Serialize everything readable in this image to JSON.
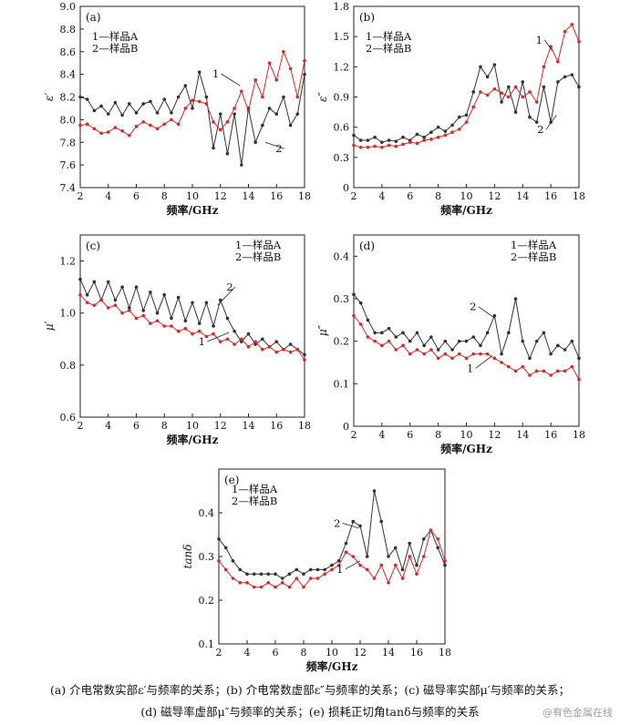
{
  "chart_data": [
    {
      "id": "a",
      "type": "line",
      "panel_label": "(a)",
      "xlabel": "频率/GHz",
      "ylabel": "ε′",
      "xlim": [
        2,
        18
      ],
      "ylim": [
        7.4,
        9.0
      ],
      "xticks": [
        2,
        4,
        6,
        8,
        10,
        12,
        14,
        16,
        18
      ],
      "yticks": [
        7.4,
        7.6,
        7.8,
        8.0,
        8.2,
        8.4,
        8.6,
        8.8,
        9.0
      ],
      "ytick_labels": [
        "7.4",
        "7.6",
        "7.8",
        "8.0",
        "8.2",
        "8.4",
        "8.6",
        "8.8",
        "9.0"
      ],
      "legend": [
        "1—样品A",
        "2—样品B"
      ],
      "series": [
        {
          "label": "1",
          "color": "#d42a2a",
          "x": [
            2,
            2.5,
            3,
            3.5,
            4,
            4.5,
            5,
            5.5,
            6,
            6.5,
            7,
            7.5,
            8,
            8.5,
            9,
            9.5,
            10,
            10.5,
            11,
            11.5,
            12,
            12.5,
            13,
            13.5,
            14,
            14.5,
            15,
            15.5,
            16,
            16.5,
            17,
            17.5,
            18
          ],
          "y": [
            7.95,
            7.96,
            7.92,
            7.88,
            7.89,
            7.93,
            7.9,
            7.86,
            7.94,
            7.98,
            7.95,
            7.92,
            7.96,
            8.0,
            7.96,
            8.1,
            8.17,
            8.16,
            8.14,
            7.98,
            7.91,
            7.98,
            8.1,
            8.25,
            8.08,
            8.35,
            8.2,
            8.5,
            8.35,
            8.6,
            8.45,
            8.2,
            8.52
          ]
        },
        {
          "label": "2",
          "color": "#333333",
          "x": [
            2,
            2.5,
            3,
            3.5,
            4,
            4.5,
            5,
            5.5,
            6,
            6.5,
            7,
            7.5,
            8,
            8.5,
            9,
            9.5,
            10,
            10.5,
            11,
            11.5,
            12,
            12.5,
            13,
            13.5,
            14,
            14.5,
            15,
            15.5,
            16,
            16.5,
            17,
            17.5,
            18
          ],
          "y": [
            8.2,
            8.18,
            8.08,
            8.12,
            8.05,
            8.15,
            8.04,
            8.14,
            8.06,
            8.14,
            8.16,
            8.06,
            8.18,
            8.06,
            8.2,
            8.3,
            8.1,
            8.42,
            8.2,
            7.75,
            8.05,
            7.7,
            8.05,
            7.6,
            8.1,
            7.8,
            7.95,
            8.1,
            8.05,
            8.2,
            7.95,
            8.05,
            8.4
          ]
        }
      ],
      "annotations": [
        "1",
        "2"
      ]
    },
    {
      "id": "b",
      "type": "line",
      "panel_label": "(b)",
      "xlabel": "频率/GHz",
      "ylabel": "ε″",
      "xlim": [
        2,
        18
      ],
      "ylim": [
        0,
        1.8
      ],
      "xticks": [
        2,
        4,
        6,
        8,
        10,
        12,
        14,
        16,
        18
      ],
      "yticks": [
        0,
        0.3,
        0.6,
        0.9,
        1.2,
        1.5,
        1.8
      ],
      "ytick_labels": [
        "0",
        "0.3",
        "0.6",
        "0.9",
        "1.2",
        "1.5",
        "1.8"
      ],
      "legend": [
        "1—样品A",
        "2—样品B"
      ],
      "series": [
        {
          "label": "1",
          "color": "#d42a2a",
          "x": [
            2,
            2.5,
            3,
            3.5,
            4,
            4.5,
            5,
            5.5,
            6,
            6.5,
            7,
            7.5,
            8,
            8.5,
            9,
            9.5,
            10,
            10.5,
            11,
            11.5,
            12,
            12.5,
            13,
            13.5,
            14,
            14.5,
            15,
            15.5,
            16,
            16.5,
            17,
            17.5,
            18
          ],
          "y": [
            0.42,
            0.4,
            0.4,
            0.41,
            0.4,
            0.42,
            0.41,
            0.43,
            0.45,
            0.44,
            0.47,
            0.48,
            0.5,
            0.52,
            0.55,
            0.58,
            0.65,
            0.8,
            0.95,
            0.92,
            0.98,
            0.94,
            0.9,
            1.0,
            0.9,
            0.95,
            0.85,
            1.2,
            1.4,
            1.25,
            1.55,
            1.62,
            1.45
          ]
        },
        {
          "label": "2",
          "color": "#333333",
          "x": [
            2,
            2.5,
            3,
            3.5,
            4,
            4.5,
            5,
            5.5,
            6,
            6.5,
            7,
            7.5,
            8,
            8.5,
            9,
            9.5,
            10,
            10.5,
            11,
            11.5,
            12,
            12.5,
            13,
            13.5,
            14,
            14.5,
            15,
            15.5,
            16,
            16.5,
            17,
            17.5,
            18
          ],
          "y": [
            0.52,
            0.47,
            0.47,
            0.5,
            0.45,
            0.47,
            0.46,
            0.5,
            0.47,
            0.53,
            0.5,
            0.55,
            0.6,
            0.56,
            0.62,
            0.7,
            0.72,
            0.95,
            1.2,
            1.1,
            1.22,
            0.85,
            1.0,
            0.75,
            1.05,
            0.7,
            0.65,
            1.0,
            0.65,
            1.05,
            1.1,
            1.12,
            1.0
          ]
        }
      ],
      "annotations": [
        "1",
        "2"
      ]
    },
    {
      "id": "c",
      "type": "line",
      "panel_label": "(c)",
      "xlabel": "频率/GHz",
      "ylabel": "μ′",
      "xlim": [
        2,
        18
      ],
      "ylim": [
        0.6,
        1.3
      ],
      "xticks": [
        2,
        4,
        6,
        8,
        10,
        12,
        14,
        16,
        18
      ],
      "yticks": [
        0.6,
        0.8,
        1.0,
        1.2
      ],
      "ytick_labels": [
        "0.6",
        "0.8",
        "1.0",
        "1.2"
      ],
      "legend": [
        "1—样品A",
        "2—样品B"
      ],
      "series": [
        {
          "label": "1",
          "color": "#d42a2a",
          "x": [
            2,
            2.5,
            3,
            3.5,
            4,
            4.5,
            5,
            5.5,
            6,
            6.5,
            7,
            7.5,
            8,
            8.5,
            9,
            9.5,
            10,
            10.5,
            11,
            11.5,
            12,
            12.5,
            13,
            13.5,
            14,
            14.5,
            15,
            15.5,
            16,
            16.5,
            17,
            17.5,
            18
          ],
          "y": [
            1.07,
            1.04,
            1.03,
            1.05,
            1.02,
            1.03,
            1.0,
            1.01,
            0.98,
            0.99,
            0.96,
            0.97,
            0.95,
            0.95,
            0.93,
            0.94,
            0.92,
            0.93,
            0.91,
            0.92,
            0.89,
            0.9,
            0.88,
            0.9,
            0.87,
            0.89,
            0.86,
            0.87,
            0.85,
            0.86,
            0.85,
            0.86,
            0.82
          ]
        },
        {
          "label": "2",
          "color": "#333333",
          "x": [
            2,
            2.5,
            3,
            3.5,
            4,
            4.5,
            5,
            5.5,
            6,
            6.5,
            7,
            7.5,
            8,
            8.5,
            9,
            9.5,
            10,
            10.5,
            11,
            11.5,
            12,
            12.5,
            13,
            13.5,
            14,
            14.5,
            15,
            15.5,
            16,
            16.5,
            17,
            17.5,
            18
          ],
          "y": [
            1.13,
            1.07,
            1.12,
            1.05,
            1.12,
            1.05,
            1.1,
            1.02,
            1.1,
            1.01,
            1.08,
            1.0,
            1.07,
            0.98,
            1.06,
            0.97,
            1.04,
            0.96,
            1.04,
            0.95,
            1.05,
            0.98,
            0.93,
            0.89,
            0.92,
            0.88,
            0.9,
            0.87,
            0.89,
            0.86,
            0.88,
            0.86,
            0.84
          ]
        }
      ],
      "annotations": [
        "1",
        "2"
      ]
    },
    {
      "id": "d",
      "type": "line",
      "panel_label": "(d)",
      "xlabel": "频率/GHz",
      "ylabel": "μ″",
      "xlim": [
        2,
        18
      ],
      "ylim": [
        0,
        0.45
      ],
      "xticks": [
        2,
        4,
        6,
        8,
        10,
        12,
        14,
        16,
        18
      ],
      "yticks": [
        0,
        0.1,
        0.2,
        0.3,
        0.4
      ],
      "ytick_labels": [
        "0",
        "0.1",
        "0.2",
        "0.3",
        "0.4"
      ],
      "legend": [
        "1—样品A",
        "2—样品B"
      ],
      "series": [
        {
          "label": "1",
          "color": "#d42a2a",
          "x": [
            2,
            2.5,
            3,
            3.5,
            4,
            4.5,
            5,
            5.5,
            6,
            6.5,
            7,
            7.5,
            8,
            8.5,
            9,
            9.5,
            10,
            10.5,
            11,
            11.5,
            12,
            12.5,
            13,
            13.5,
            14,
            14.5,
            15,
            15.5,
            16,
            16.5,
            17,
            17.5,
            18
          ],
          "y": [
            0.26,
            0.24,
            0.21,
            0.2,
            0.19,
            0.2,
            0.18,
            0.19,
            0.17,
            0.18,
            0.17,
            0.18,
            0.16,
            0.17,
            0.16,
            0.17,
            0.16,
            0.17,
            0.17,
            0.17,
            0.16,
            0.15,
            0.14,
            0.13,
            0.14,
            0.12,
            0.13,
            0.13,
            0.12,
            0.13,
            0.13,
            0.14,
            0.11
          ]
        },
        {
          "label": "2",
          "color": "#333333",
          "x": [
            2,
            2.5,
            3,
            3.5,
            4,
            4.5,
            5,
            5.5,
            6,
            6.5,
            7,
            7.5,
            8,
            8.5,
            9,
            9.5,
            10,
            10.5,
            11,
            11.5,
            12,
            12.5,
            13,
            13.5,
            14,
            14.5,
            15,
            15.5,
            16,
            16.5,
            17,
            17.5,
            18
          ],
          "y": [
            0.31,
            0.29,
            0.25,
            0.22,
            0.22,
            0.23,
            0.21,
            0.22,
            0.2,
            0.22,
            0.19,
            0.21,
            0.18,
            0.2,
            0.18,
            0.2,
            0.2,
            0.21,
            0.19,
            0.22,
            0.26,
            0.17,
            0.22,
            0.3,
            0.2,
            0.16,
            0.2,
            0.22,
            0.17,
            0.19,
            0.18,
            0.2,
            0.16
          ]
        }
      ],
      "annotations": [
        "1",
        "2"
      ]
    },
    {
      "id": "e",
      "type": "line",
      "panel_label": "(e)",
      "xlabel": "频率/GHz",
      "ylabel": "tanδ",
      "xlim": [
        2,
        18
      ],
      "ylim": [
        0.1,
        0.5
      ],
      "xticks": [
        2,
        4,
        6,
        8,
        10,
        12,
        14,
        16,
        18
      ],
      "yticks": [
        0.1,
        0.2,
        0.3,
        0.4
      ],
      "ytick_labels": [
        "0.1",
        "0.2",
        "0.3",
        "0.4"
      ],
      "legend": [
        "1—样品A",
        "2—样品B"
      ],
      "series": [
        {
          "label": "1",
          "color": "#d42a2a",
          "x": [
            2,
            2.5,
            3,
            3.5,
            4,
            4.5,
            5,
            5.5,
            6,
            6.5,
            7,
            7.5,
            8,
            8.5,
            9,
            9.5,
            10,
            10.5,
            11,
            11.5,
            12,
            12.5,
            13,
            13.5,
            14,
            14.5,
            15,
            15.5,
            16,
            16.5,
            17,
            17.5,
            18
          ],
          "y": [
            0.29,
            0.27,
            0.25,
            0.24,
            0.24,
            0.23,
            0.23,
            0.24,
            0.23,
            0.24,
            0.23,
            0.25,
            0.23,
            0.25,
            0.25,
            0.26,
            0.27,
            0.28,
            0.31,
            0.3,
            0.28,
            0.27,
            0.25,
            0.28,
            0.24,
            0.28,
            0.25,
            0.3,
            0.26,
            0.3,
            0.36,
            0.34,
            0.29
          ]
        },
        {
          "label": "2",
          "color": "#333333",
          "x": [
            2,
            2.5,
            3,
            3.5,
            4,
            4.5,
            5,
            5.5,
            6,
            6.5,
            7,
            7.5,
            8,
            8.5,
            9,
            9.5,
            10,
            10.5,
            11,
            11.5,
            12,
            12.5,
            13,
            13.5,
            14,
            14.5,
            15,
            15.5,
            16,
            16.5,
            17,
            17.5,
            18
          ],
          "y": [
            0.34,
            0.32,
            0.29,
            0.27,
            0.26,
            0.26,
            0.26,
            0.26,
            0.26,
            0.25,
            0.26,
            0.27,
            0.26,
            0.27,
            0.27,
            0.27,
            0.28,
            0.29,
            0.33,
            0.38,
            0.37,
            0.3,
            0.45,
            0.38,
            0.3,
            0.32,
            0.27,
            0.33,
            0.28,
            0.34,
            0.36,
            0.32,
            0.28
          ]
        }
      ],
      "annotations": [
        "1",
        "2"
      ]
    }
  ],
  "caption": {
    "line1": "(a) 介电常数实部ε′与频率的关系；(b) 介电常数虚部ε″与频率的关系；(c) 磁导率实部μ′与频率的关系；",
    "line2": "(d) 磁导率虚部μ″与频率的关系；(e) 损耗正切角tanδ与频率的关系"
  },
  "watermark": "@有色金属在线"
}
